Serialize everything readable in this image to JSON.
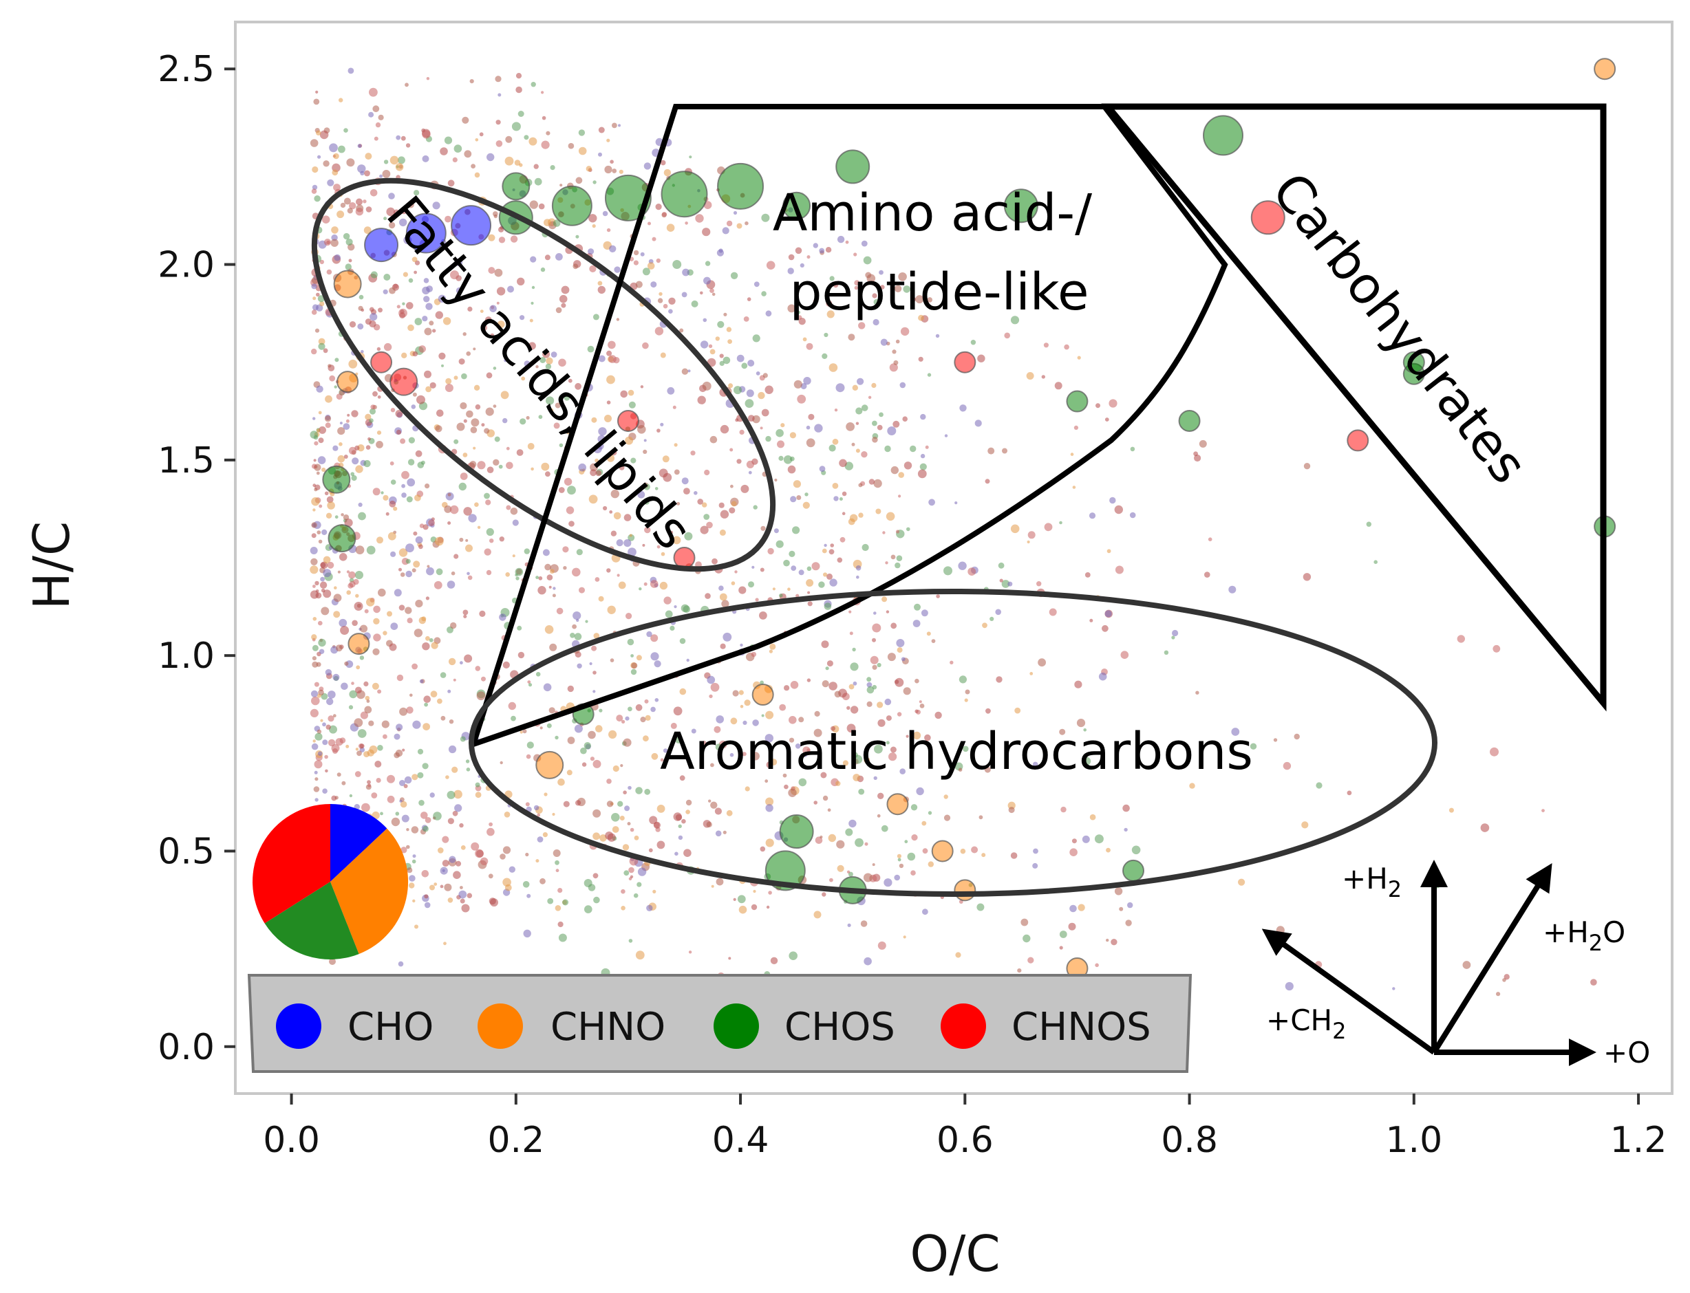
{
  "chart_data": {
    "type": "scatter",
    "title": "",
    "xlabel": "O/C",
    "ylabel": "H/C",
    "xlim": [
      -0.05,
      1.23
    ],
    "ylim": [
      -0.12,
      2.62
    ],
    "x_ticks": [
      0.0,
      0.2,
      0.4,
      0.6,
      0.8,
      1.0,
      1.2
    ],
    "x_tick_labels": [
      "0.0",
      "0.2",
      "0.4",
      "0.6",
      "0.8",
      "1.0",
      "1.2"
    ],
    "y_ticks": [
      0.0,
      0.5,
      1.0,
      1.5,
      2.0,
      2.5
    ],
    "y_tick_labels": [
      "0.0",
      "0.5",
      "1.0",
      "1.5",
      "2.0",
      "2.5"
    ],
    "grid": false,
    "legend_position": "bottom-left",
    "series": [
      {
        "name": "CHO",
        "color": "#0000ff"
      },
      {
        "name": "CHNO",
        "color": "#ff8000"
      },
      {
        "name": "CHOS",
        "color": "#008000"
      },
      {
        "name": "CHNOS",
        "color": "#ff0000"
      }
    ],
    "scatter_points": [
      {
        "x": 0.05,
        "y": 1.95,
        "c": "CHNO",
        "s": 3
      },
      {
        "x": 0.08,
        "y": 2.05,
        "c": "CHO",
        "s": 4
      },
      {
        "x": 0.12,
        "y": 2.08,
        "c": "CHO",
        "s": 5
      },
      {
        "x": 0.16,
        "y": 2.1,
        "c": "CHO",
        "s": 5
      },
      {
        "x": 0.2,
        "y": 2.12,
        "c": "CHOS",
        "s": 4
      },
      {
        "x": 0.25,
        "y": 2.15,
        "c": "CHOS",
        "s": 5
      },
      {
        "x": 0.3,
        "y": 2.17,
        "c": "CHOS",
        "s": 6
      },
      {
        "x": 0.35,
        "y": 2.18,
        "c": "CHOS",
        "s": 6
      },
      {
        "x": 0.4,
        "y": 2.2,
        "c": "CHOS",
        "s": 6
      },
      {
        "x": 0.5,
        "y": 2.25,
        "c": "CHOS",
        "s": 4
      },
      {
        "x": 0.2,
        "y": 2.2,
        "c": "CHOS",
        "s": 3
      },
      {
        "x": 0.45,
        "y": 2.15,
        "c": "CHOS",
        "s": 3
      },
      {
        "x": 0.65,
        "y": 2.15,
        "c": "CHOS",
        "s": 4
      },
      {
        "x": 0.83,
        "y": 2.33,
        "c": "CHOS",
        "s": 5
      },
      {
        "x": 0.87,
        "y": 2.12,
        "c": "CHNOS",
        "s": 4
      },
      {
        "x": 1.17,
        "y": 2.5,
        "c": "CHNO",
        "s": 2
      },
      {
        "x": 0.05,
        "y": 1.7,
        "c": "CHNO",
        "s": 2
      },
      {
        "x": 0.08,
        "y": 1.75,
        "c": "CHNOS",
        "s": 2
      },
      {
        "x": 0.04,
        "y": 1.45,
        "c": "CHOS",
        "s": 3
      },
      {
        "x": 0.045,
        "y": 1.3,
        "c": "CHOS",
        "s": 3
      },
      {
        "x": 0.06,
        "y": 1.03,
        "c": "CHNO",
        "s": 2
      },
      {
        "x": 0.23,
        "y": 0.72,
        "c": "CHNO",
        "s": 3
      },
      {
        "x": 0.45,
        "y": 0.55,
        "c": "CHOS",
        "s": 4
      },
      {
        "x": 0.44,
        "y": 0.45,
        "c": "CHOS",
        "s": 5
      },
      {
        "x": 0.5,
        "y": 0.4,
        "c": "CHOS",
        "s": 3
      },
      {
        "x": 0.42,
        "y": 0.9,
        "c": "CHNO",
        "s": 2
      },
      {
        "x": 0.26,
        "y": 0.85,
        "c": "CHOS",
        "s": 2
      },
      {
        "x": 0.54,
        "y": 0.62,
        "c": "CHNO",
        "s": 2
      },
      {
        "x": 0.6,
        "y": 0.4,
        "c": "CHNO",
        "s": 2
      },
      {
        "x": 0.58,
        "y": 0.5,
        "c": "CHNO",
        "s": 2
      },
      {
        "x": 1.0,
        "y": 1.72,
        "c": "CHOS",
        "s": 2
      },
      {
        "x": 0.8,
        "y": 1.6,
        "c": "CHOS",
        "s": 2
      },
      {
        "x": 0.6,
        "y": 1.75,
        "c": "CHNOS",
        "s": 2
      },
      {
        "x": 0.7,
        "y": 1.65,
        "c": "CHOS",
        "s": 2
      },
      {
        "x": 0.35,
        "y": 1.25,
        "c": "CHNOS",
        "s": 2
      },
      {
        "x": 0.3,
        "y": 1.6,
        "c": "CHNOS",
        "s": 2
      },
      {
        "x": 0.1,
        "y": 1.7,
        "c": "CHNOS",
        "s": 3
      },
      {
        "x": 0.75,
        "y": 0.45,
        "c": "CHOS",
        "s": 2
      },
      {
        "x": 0.7,
        "y": 0.2,
        "c": "CHNO",
        "s": 2
      },
      {
        "x": 1.17,
        "y": 1.33,
        "c": "CHOS",
        "s": 2
      },
      {
        "x": 1.0,
        "y": 1.75,
        "c": "CHOS",
        "s": 2
      },
      {
        "x": 0.95,
        "y": 1.55,
        "c": "CHNOS",
        "s": 2
      }
    ],
    "pie": [
      {
        "name": "CHO",
        "value": 13,
        "color": "#0000ff"
      },
      {
        "name": "CHNO",
        "value": 31,
        "color": "#ff8000"
      },
      {
        "name": "CHOS",
        "value": 22,
        "color": "#228b22"
      },
      {
        "name": "CHNOS",
        "value": 34,
        "color": "#ff0000"
      }
    ],
    "annotations": [
      {
        "text": "Fatty acids, lipids",
        "kind": "ellipse-region"
      },
      {
        "text": "Amino acid-/",
        "kind": "region-label"
      },
      {
        "text": "peptide-like",
        "kind": "region-label"
      },
      {
        "text": "Carbohydrates",
        "kind": "triangle-region"
      },
      {
        "text": "Aromatic hydrocarbons",
        "kind": "ellipse-region"
      }
    ],
    "vectors": [
      {
        "label": "+H",
        "sub": "2",
        "suffix": "",
        "direction": "up"
      },
      {
        "label": "+H",
        "sub": "2",
        "suffix": "O",
        "direction": "up-right"
      },
      {
        "label": "+CH",
        "sub": "2",
        "suffix": "",
        "direction": "up-left"
      },
      {
        "label": "+O",
        "sub": "",
        "suffix": "",
        "direction": "right"
      }
    ]
  }
}
